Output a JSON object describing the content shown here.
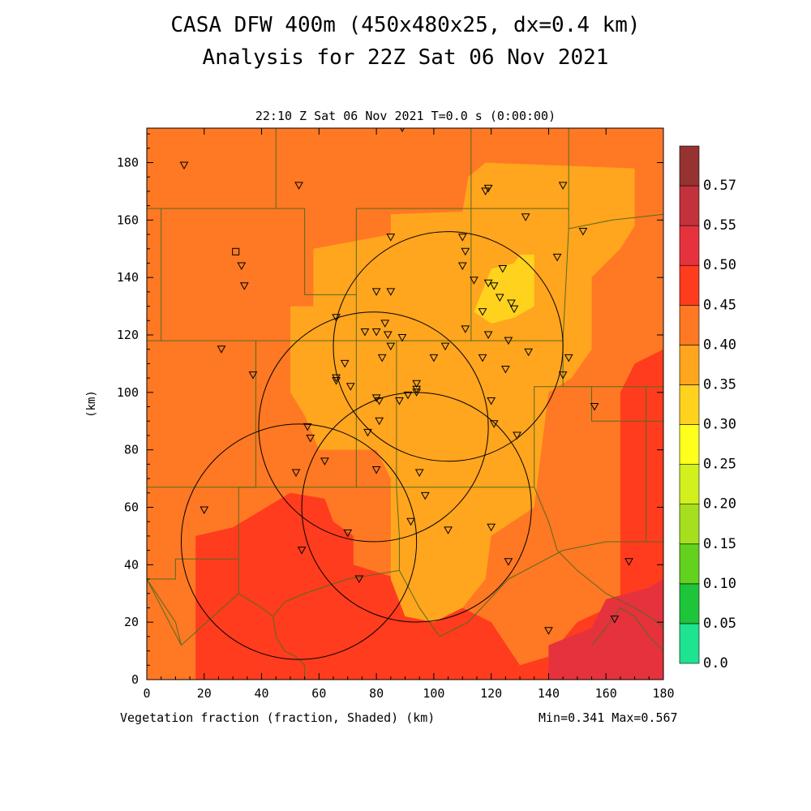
{
  "header": {
    "title_line1": "CASA DFW 400m (450x480x25, dx=0.4 km)",
    "title_line2": "Analysis for 22Z Sat 06 Nov 2021",
    "subtitle": "22:10 Z Sat 06 Nov 2021    T=0.0 s (0:00:00)"
  },
  "footer": {
    "left": "Vegetation fraction (fraction, Shaded)  (km)",
    "right": "Min=0.341 Max=0.567"
  },
  "chart_data": {
    "type": "heatmap",
    "title": "Vegetation fraction (fraction, Shaded)",
    "xlabel": "(km)",
    "ylabel": "(km)",
    "xlim": [
      0,
      180
    ],
    "ylim": [
      0,
      192
    ],
    "x_ticks": [
      "0",
      "20",
      "40",
      "60",
      "80",
      "100",
      "120",
      "140",
      "160",
      "180"
    ],
    "y_ticks": [
      "0",
      "20",
      "40",
      "60",
      "80",
      "100",
      "120",
      "140",
      "160",
      "180"
    ],
    "colorbar": {
      "labels": [
        "0.0",
        "0.05",
        "0.10",
        "0.15",
        "0.20",
        "0.25",
        "0.30",
        "0.35",
        "0.40",
        "0.45",
        "0.50",
        "0.55",
        "0.57"
      ],
      "colors": [
        "#1ee391",
        "#1ec43a",
        "#62d21e",
        "#a6df1e",
        "#d2ef1e",
        "#ffff1e",
        "#ffd21e",
        "#ffa51e",
        "#ff7823",
        "#ff3c1e",
        "#e6323c",
        "#c3323c",
        "#963232"
      ]
    },
    "min": 0.341,
    "max": 0.567,
    "shaded_regions": [
      {
        "level": "0.40-0.45",
        "polygon": [
          [
            0,
            0
          ],
          [
            180,
            0
          ],
          [
            180,
            192
          ],
          [
            0,
            192
          ]
        ]
      },
      {
        "level": "0.45-0.50",
        "polygon": [
          [
            17,
            0
          ],
          [
            17,
            50
          ],
          [
            30,
            53
          ],
          [
            50,
            65
          ],
          [
            62,
            63
          ],
          [
            65,
            55
          ],
          [
            72,
            50
          ],
          [
            72,
            40
          ],
          [
            88,
            35
          ],
          [
            100,
            30
          ],
          [
            120,
            20
          ],
          [
            130,
            5
          ],
          [
            140,
            8
          ],
          [
            150,
            20
          ],
          [
            165,
            27
          ],
          [
            165,
            100
          ],
          [
            170,
            110
          ],
          [
            180,
            115
          ],
          [
            180,
            0
          ]
        ]
      },
      {
        "level": "0.50-0.55",
        "polygon": [
          [
            140,
            0
          ],
          [
            140,
            12
          ],
          [
            155,
            18
          ],
          [
            160,
            28
          ],
          [
            175,
            32
          ],
          [
            180,
            35
          ],
          [
            180,
            0
          ]
        ]
      },
      {
        "level": "0.35-0.40",
        "polygon": [
          [
            50,
            100
          ],
          [
            50,
            130
          ],
          [
            58,
            130
          ],
          [
            58,
            150
          ],
          [
            85,
            155
          ],
          [
            85,
            162
          ],
          [
            110,
            163
          ],
          [
            112,
            175
          ],
          [
            118,
            180
          ],
          [
            170,
            178
          ],
          [
            170,
            158
          ],
          [
            165,
            150
          ],
          [
            155,
            140
          ],
          [
            155,
            115
          ],
          [
            148,
            105
          ],
          [
            140,
            100
          ],
          [
            135,
            60
          ],
          [
            120,
            50
          ],
          [
            118,
            35
          ],
          [
            110,
            25
          ],
          [
            100,
            20
          ],
          [
            90,
            22
          ],
          [
            85,
            35
          ],
          [
            85,
            70
          ],
          [
            80,
            80
          ],
          [
            60,
            80
          ],
          [
            55,
            92
          ]
        ]
      },
      {
        "level": "0.30-0.35",
        "polygon": [
          [
            114,
            128
          ],
          [
            120,
            143
          ],
          [
            128,
            145
          ],
          [
            130,
            148
          ],
          [
            135,
            148
          ],
          [
            135,
            130
          ],
          [
            128,
            126
          ],
          [
            120,
            124
          ]
        ]
      }
    ],
    "radar_circles": [
      {
        "name": "c1",
        "cx": 105,
        "cy": 116,
        "r": 40
      },
      {
        "name": "c2",
        "cx": 79,
        "cy": 88,
        "r": 40
      },
      {
        "name": "c3",
        "cx": 94,
        "cy": 60,
        "r": 40
      },
      {
        "name": "c4",
        "cx": 53,
        "cy": 48,
        "r": 41
      }
    ],
    "stations": [
      [
        13,
        179
      ],
      [
        53,
        172
      ],
      [
        89,
        192
      ],
      [
        118,
        170
      ],
      [
        119,
        171
      ],
      [
        145,
        172
      ],
      [
        132,
        161
      ],
      [
        152,
        156
      ],
      [
        85,
        154
      ],
      [
        110,
        154
      ],
      [
        111,
        149
      ],
      [
        143,
        147
      ],
      [
        33,
        144
      ],
      [
        34,
        137
      ],
      [
        110,
        144
      ],
      [
        114,
        139
      ],
      [
        119,
        138
      ],
      [
        121,
        137
      ],
      [
        123,
        133
      ],
      [
        127,
        131
      ],
      [
        128,
        129
      ],
      [
        124,
        143
      ],
      [
        117,
        128
      ],
      [
        80,
        135
      ],
      [
        85,
        135
      ],
      [
        66,
        126
      ],
      [
        76,
        121
      ],
      [
        80,
        121
      ],
      [
        83,
        124
      ],
      [
        84,
        120
      ],
      [
        89,
        119
      ],
      [
        104,
        116
      ],
      [
        111,
        122
      ],
      [
        119,
        120
      ],
      [
        126,
        118
      ],
      [
        133,
        114
      ],
      [
        147,
        112
      ],
      [
        26,
        115
      ],
      [
        37,
        106
      ],
      [
        69,
        110
      ],
      [
        82,
        112
      ],
      [
        85,
        116
      ],
      [
        100,
        112
      ],
      [
        117,
        112
      ],
      [
        125,
        108
      ],
      [
        145,
        106
      ],
      [
        66,
        105
      ],
      [
        66,
        104
      ],
      [
        71,
        102
      ],
      [
        94,
        103
      ],
      [
        94,
        101
      ],
      [
        94,
        100
      ],
      [
        80,
        98
      ],
      [
        81,
        97
      ],
      [
        88,
        97
      ],
      [
        91,
        99
      ],
      [
        120,
        97
      ],
      [
        156,
        95
      ],
      [
        81,
        90
      ],
      [
        77,
        86
      ],
      [
        121,
        89
      ],
      [
        129,
        85
      ],
      [
        56,
        88
      ],
      [
        57,
        84
      ],
      [
        62,
        76
      ],
      [
        80,
        73
      ],
      [
        95,
        72
      ],
      [
        97,
        64
      ],
      [
        20,
        59
      ],
      [
        70,
        51
      ],
      [
        92,
        55
      ],
      [
        105,
        52
      ],
      [
        120,
        53
      ],
      [
        52,
        72
      ],
      [
        54,
        45
      ],
      [
        74,
        35
      ],
      [
        126,
        41
      ],
      [
        168,
        41
      ],
      [
        140,
        17
      ],
      [
        163,
        21
      ]
    ],
    "square_markers": [
      [
        31,
        149
      ]
    ],
    "county_lines": [
      [
        [
          45,
          192
        ],
        [
          45,
          164
        ],
        [
          55,
          164
        ],
        [
          55,
          134
        ],
        [
          73,
          134
        ],
        [
          73,
          164
        ],
        [
          113,
          164
        ],
        [
          113,
          192
        ]
      ],
      [
        [
          0,
          164
        ],
        [
          45,
          164
        ]
      ],
      [
        [
          5,
          164
        ],
        [
          5,
          118
        ],
        [
          0,
          118
        ]
      ],
      [
        [
          5,
          118
        ],
        [
          38,
          118
        ],
        [
          38,
          67
        ],
        [
          0,
          67
        ]
      ],
      [
        [
          38,
          118
        ],
        [
          73,
          118
        ],
        [
          73,
          134
        ]
      ],
      [
        [
          73,
          118
        ],
        [
          113,
          118
        ],
        [
          113,
          164
        ]
      ],
      [
        [
          113,
          164
        ],
        [
          147,
          164
        ],
        [
          147,
          192
        ]
      ],
      [
        [
          147,
          164
        ],
        [
          147,
          157
        ],
        [
          162,
          160
        ],
        [
          180,
          162
        ]
      ],
      [
        [
          147,
          157
        ],
        [
          145,
          118
        ],
        [
          113,
          118
        ]
      ],
      [
        [
          145,
          118
        ],
        [
          145,
          102
        ],
        [
          180,
          102
        ]
      ],
      [
        [
          73,
          118
        ],
        [
          73,
          67
        ],
        [
          38,
          67
        ]
      ],
      [
        [
          87,
          118
        ],
        [
          87,
          67
        ],
        [
          73,
          67
        ]
      ],
      [
        [
          87,
          67
        ],
        [
          135,
          67
        ],
        [
          135,
          102
        ],
        [
          145,
          102
        ]
      ],
      [
        [
          38,
          67
        ],
        [
          32,
          67
        ],
        [
          32,
          42
        ],
        [
          10,
          42
        ],
        [
          10,
          35
        ],
        [
          0,
          35
        ]
      ],
      [
        [
          32,
          42
        ],
        [
          32,
          30
        ],
        [
          12,
          12
        ],
        [
          0,
          35
        ]
      ],
      [
        [
          32,
          30
        ],
        [
          40,
          25
        ],
        [
          44,
          22
        ],
        [
          48,
          27
        ],
        [
          55,
          30
        ],
        [
          70,
          35
        ],
        [
          88,
          38
        ],
        [
          95,
          25
        ],
        [
          102,
          15
        ],
        [
          112,
          20
        ],
        [
          126,
          35
        ],
        [
          145,
          45
        ],
        [
          160,
          48
        ],
        [
          180,
          48
        ]
      ],
      [
        [
          155,
          102
        ],
        [
          155,
          90
        ],
        [
          180,
          90
        ]
      ],
      [
        [
          174,
          102
        ],
        [
          174,
          48
        ]
      ],
      [
        [
          135,
          67
        ],
        [
          140,
          55
        ],
        [
          143,
          45
        ],
        [
          150,
          38
        ],
        [
          160,
          30
        ],
        [
          170,
          25
        ],
        [
          178,
          20
        ],
        [
          180,
          18
        ]
      ],
      [
        [
          88,
          38
        ],
        [
          88,
          50
        ],
        [
          87,
          67
        ]
      ],
      [
        [
          44,
          22
        ],
        [
          45,
          15
        ],
        [
          48,
          10
        ],
        [
          52,
          8
        ],
        [
          55,
          5
        ],
        [
          55,
          0
        ]
      ],
      [
        [
          0,
          35
        ],
        [
          10,
          20
        ],
        [
          12,
          12
        ]
      ],
      [
        [
          155,
          12
        ],
        [
          160,
          18
        ],
        [
          165,
          25
        ],
        [
          170,
          22
        ],
        [
          175,
          15
        ],
        [
          180,
          10
        ]
      ]
    ]
  }
}
